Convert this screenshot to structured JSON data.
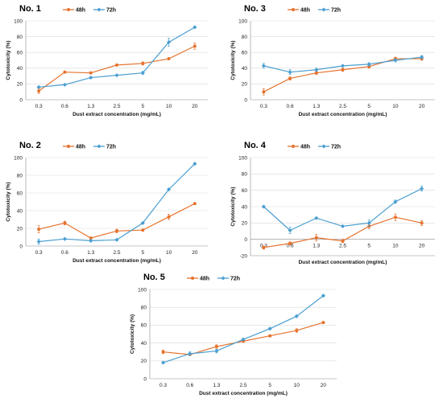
{
  "colors": {
    "48h": "#E5732E",
    "72h": "#4A9FD0",
    "grid": "#d9d9d9",
    "axis": "#8c8c8c"
  },
  "chart_data": [
    {
      "type": "line",
      "title": "No. 1",
      "xlabel": "Dust extract concentration (mg/mL)",
      "ylabel": "Cytotoxicity (%)",
      "categories": [
        "0.3",
        "0.6",
        "1.3",
        "2.5",
        "5",
        "10",
        "20"
      ],
      "ylim": [
        0,
        100
      ],
      "yticks": [
        "0",
        "20",
        "40",
        "60",
        "80",
        "100"
      ],
      "legend_position": "top-center",
      "grid": true,
      "series": [
        {
          "name": "48h",
          "values": [
            11,
            35,
            34,
            44,
            46,
            52,
            68
          ],
          "errors": [
            3,
            1,
            1,
            1,
            2,
            1,
            4
          ]
        },
        {
          "name": "72h",
          "values": [
            16,
            19,
            28,
            31,
            34,
            73,
            92
          ],
          "errors": [
            1,
            1,
            1,
            1,
            2,
            5,
            1
          ]
        }
      ]
    },
    {
      "type": "line",
      "title": "No. 3",
      "xlabel": "Dust extract concentration (mg/mL)",
      "ylabel": "Cytotoxicity (%)",
      "categories": [
        "0.3",
        "0.6",
        "1.3",
        "2.5",
        "5",
        "10",
        "20"
      ],
      "ylim": [
        0,
        100
      ],
      "yticks": [
        "0",
        "20",
        "40",
        "60",
        "80",
        "100"
      ],
      "legend_position": "top-center",
      "grid": true,
      "series": [
        {
          "name": "48h",
          "values": [
            10,
            27,
            34,
            38,
            42,
            52,
            52
          ],
          "errors": [
            4,
            2,
            2,
            2,
            2,
            2,
            2
          ]
        },
        {
          "name": "72h",
          "values": [
            43,
            35,
            38,
            43,
            45,
            50,
            54
          ],
          "errors": [
            3,
            3,
            2,
            1,
            2,
            2,
            2
          ]
        }
      ]
    },
    {
      "type": "line",
      "title": "No. 2",
      "xlabel": "Dust extract concentration (mg/mL)",
      "ylabel": "Cytotoxicity (%)",
      "categories": [
        "0.3",
        "0.6",
        "1.3",
        "2.5",
        "5",
        "10",
        "20"
      ],
      "ylim": [
        0,
        100
      ],
      "yticks": [
        "0",
        "20",
        "40",
        "60",
        "80",
        "100"
      ],
      "legend_position": "top-center",
      "grid": true,
      "series": [
        {
          "name": "48h",
          "values": [
            19,
            26,
            9,
            17,
            18,
            33,
            48
          ],
          "errors": [
            4,
            2,
            1,
            2,
            1,
            3,
            1
          ]
        },
        {
          "name": "72h",
          "values": [
            5,
            8,
            6,
            7,
            26,
            64,
            93
          ],
          "errors": [
            3,
            1,
            1,
            1,
            1,
            1,
            1
          ]
        }
      ]
    },
    {
      "type": "line",
      "title": "No. 4",
      "xlabel": "Dust extract concentration (mg/mL)",
      "ylabel": "Cytotoxicity (%)",
      "categories": [
        "0.3",
        "0.6",
        "1.3",
        "2.5",
        "5",
        "10",
        "20"
      ],
      "ylim": [
        -20,
        100
      ],
      "yticks": [
        "-20",
        "0",
        "20",
        "40",
        "60",
        "80",
        "100"
      ],
      "legend_position": "top-center",
      "grid": true,
      "series": [
        {
          "name": "48h",
          "values": [
            -10,
            -5,
            2,
            -2,
            16,
            27,
            20
          ],
          "errors": [
            2,
            2,
            4,
            2,
            3,
            4,
            3
          ]
        },
        {
          "name": "72h",
          "values": [
            40,
            11,
            26,
            16,
            20,
            46,
            62
          ],
          "errors": [
            1,
            4,
            1,
            1,
            4,
            2,
            3
          ]
        }
      ]
    },
    {
      "type": "line",
      "title": "No. 5",
      "xlabel": "Dust extract concentration (mg/mL)",
      "ylabel": "Cytotoxicity (%)",
      "categories": [
        "0.3",
        "0.6",
        "1.3",
        "2.5",
        "5",
        "10",
        "20"
      ],
      "ylim": [
        0,
        100
      ],
      "yticks": [
        "0",
        "20",
        "40",
        "60",
        "80",
        "100"
      ],
      "legend_position": "top-center",
      "grid": true,
      "series": [
        {
          "name": "48h",
          "values": [
            30,
            27,
            36,
            42,
            48,
            54,
            63
          ],
          "errors": [
            2,
            1,
            2,
            1,
            1,
            2,
            1
          ]
        },
        {
          "name": "72h",
          "values": [
            18,
            28,
            31,
            44,
            56,
            70,
            93
          ],
          "errors": [
            1,
            2,
            2,
            1,
            1,
            1,
            1
          ]
        }
      ]
    }
  ]
}
